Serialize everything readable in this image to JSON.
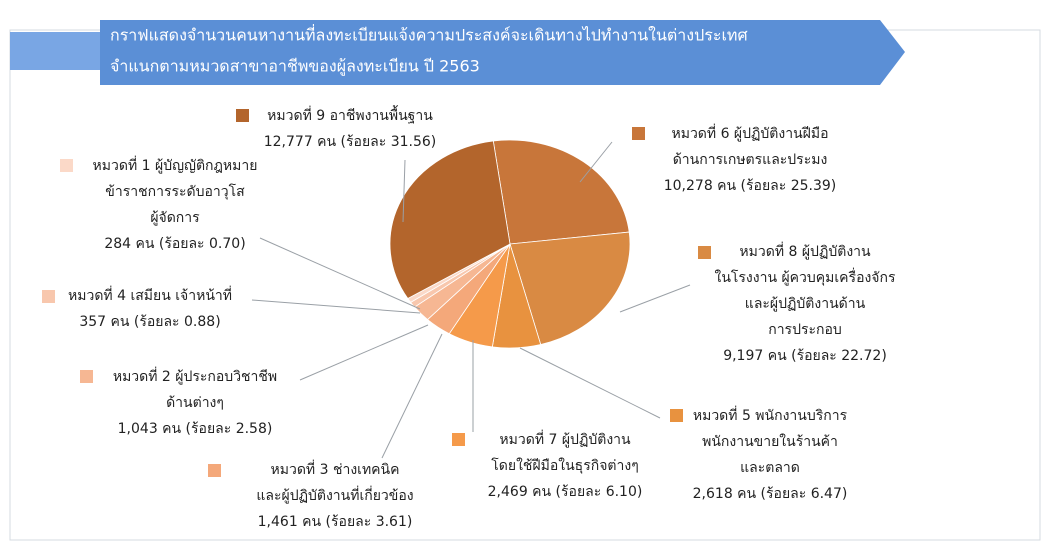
{
  "chart_data": {
    "type": "pie",
    "title": [
      "กราฟแสดงจำนวนคนหางานที่ลงทะเบียนแจ้งความประสงค์จะเดินทางไปทำงานในต่างประเทศ",
      "จำแนกตามหมวดสาขาอาชีพของผู้ลงทะเบียน  ปี 2563"
    ],
    "categories": [
      [
        "หมวดที่ 6 ผู้ปฏิบัติงานฝีมือ",
        "ด้านการเกษตรและประมง"
      ],
      [
        "หมวดที่ 8 ผู้ปฏิบัติงาน",
        "ในโรงงาน ผู้ควบคุมเครื่องจักร",
        "และผู้ปฏิบัติงานด้าน",
        "การประกอบ"
      ],
      [
        "หมวดที่ 5 พนักงานบริการ",
        "พนักงานขายในร้านค้า",
        "และตลาด"
      ],
      [
        "หมวดที่ 7 ผู้ปฏิบัติงาน",
        "โดยใช้ฝีมือในธุรกิจต่างๆ"
      ],
      [
        "หมวดที่ 3 ช่างเทคนิค",
        "และผู้ปฏิบัติงานที่เกี่ยวข้อง"
      ],
      [
        "หมวดที่ 2 ผู้ประกอบวิชาชีพ",
        "ด้านต่างๆ"
      ],
      [
        "หมวดที่ 4 เสมียน เจ้าหน้าที่"
      ],
      [
        "หมวดที่ 1 ผู้บัญญัติกฎหมาย",
        "ข้าราชการระดับอาวุโส",
        "ผู้จัดการ"
      ],
      [
        "หมวดที่ 9 อาชีพงานพื้นฐาน"
      ]
    ],
    "values": [
      10278,
      9197,
      2618,
      2469,
      1461,
      1043,
      357,
      284,
      12777
    ],
    "value_labels": [
      "10,278 คน (ร้อยละ 25.39)",
      "9,197 คน (ร้อยละ 22.72)",
      "2,618 คน (ร้อยละ 6.47)",
      "2,469 คน (ร้อยละ 6.10)",
      "1,461 คน (ร้อยละ 3.61)",
      "1,043 คน (ร้อยละ 2.58)",
      "357 คน (ร้อยละ 0.88)",
      "284 คน (ร้อยละ 0.70)",
      "12,777 คน (ร้อยละ 31.56)"
    ],
    "colors": [
      "#c8763a",
      "#d98a43",
      "#e8923f",
      "#f59a4a",
      "#f4a87a",
      "#f6b793",
      "#f8c7ad",
      "#fbd9c8",
      "#b3652c"
    ]
  }
}
